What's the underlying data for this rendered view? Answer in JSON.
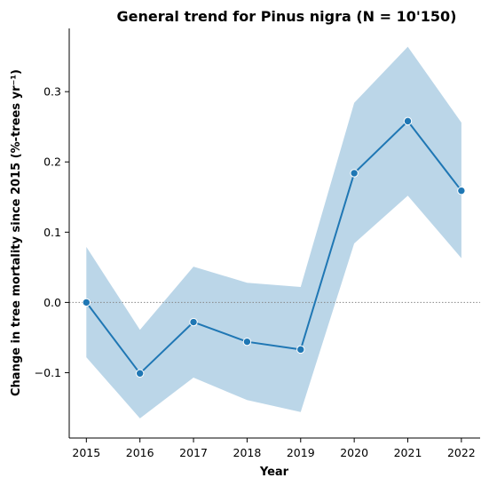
{
  "chart_data": {
    "type": "line",
    "title": "General trend for Pinus nigra  (N = 10'150)",
    "xlabel": "Year",
    "ylabel": "Change in tree mortality since 2015 (%-trees yr⁻¹)",
    "x": [
      2015,
      2016,
      2017,
      2018,
      2019,
      2020,
      2021,
      2022
    ],
    "x_tick_labels": [
      "2015",
      "2016",
      "2017",
      "2018",
      "2019",
      "2020",
      "2021",
      "2022"
    ],
    "y_ticks": [
      -0.1,
      0.0,
      0.1,
      0.2,
      0.3
    ],
    "y_tick_labels": [
      "−0.1",
      "0.0",
      "0.1",
      "0.2",
      "0.3"
    ],
    "xlim": [
      2014.68,
      2022.35
    ],
    "ylim": [
      -0.193,
      0.39
    ],
    "series": [
      {
        "values": [
          0.0,
          -0.101,
          -0.028,
          -0.056,
          -0.067,
          0.184,
          0.258,
          0.159
        ],
        "ci_lower": [
          -0.078,
          -0.165,
          -0.107,
          -0.139,
          -0.156,
          0.084,
          0.152,
          0.063
        ],
        "ci_upper": [
          0.079,
          -0.039,
          0.051,
          0.028,
          0.022,
          0.284,
          0.364,
          0.256
        ],
        "color": "#1f77b4",
        "ci_color": "#bbd6e8"
      }
    ],
    "reference_line": {
      "y": 0.0,
      "style": "dotted",
      "color": "#888888"
    },
    "grid": false,
    "legend": "none",
    "spines": "left-bottom"
  }
}
